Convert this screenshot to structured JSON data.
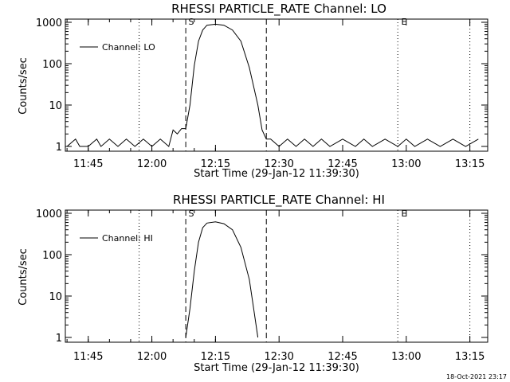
{
  "timestamp": "18-Oct-2021 23:17",
  "chart_data": [
    {
      "type": "line",
      "title": "RHESSI PARTICLE_RATE Channel: LO",
      "xlabel": "Start Time (29-Jan-12 11:39:30)",
      "ylabel": "Counts/sec",
      "yscale": "log",
      "ylim": [
        1,
        1000
      ],
      "xlim_minutes": [
        11.66,
        13.32
      ],
      "x_ticks": [
        "11:45",
        "12:00",
        "12:15",
        "12:30",
        "12:45",
        "13:00",
        "13:15"
      ],
      "y_ticks": [
        "1",
        "10",
        "100",
        "1000"
      ],
      "legend": {
        "label": "Channel: LO",
        "placement": "top-left"
      },
      "dashed_markers": [
        "12:08",
        "12:27"
      ],
      "dotted_markers": [
        "11:57",
        "12:58",
        "13:15"
      ],
      "marker_labels": [
        {
          "text": "S",
          "at": "12:09"
        },
        {
          "text": "E",
          "at": "12:59"
        }
      ],
      "series": [
        {
          "name": "Channel: LO",
          "points": [
            [
              "11:40",
              1
            ],
            [
              "11:42",
              1.5
            ],
            [
              "11:43",
              1
            ],
            [
              "11:45",
              1
            ],
            [
              "11:47",
              1.5
            ],
            [
              "11:48",
              1
            ],
            [
              "11:50",
              1.5
            ],
            [
              "11:52",
              1
            ],
            [
              "11:54",
              1.5
            ],
            [
              "11:56",
              1
            ],
            [
              "11:58",
              1.5
            ],
            [
              "12:00",
              1
            ],
            [
              "12:02",
              1.5
            ],
            [
              "12:04",
              1
            ],
            [
              "12:05",
              2.5
            ],
            [
              "12:06",
              2
            ],
            [
              "12:07",
              2.7
            ],
            [
              "12:08",
              2.7
            ],
            [
              "12:09",
              10
            ],
            [
              "12:10",
              90
            ],
            [
              "12:11",
              350
            ],
            [
              "12:12",
              650
            ],
            [
              "12:13",
              850
            ],
            [
              "12:15",
              900
            ],
            [
              "12:17",
              850
            ],
            [
              "12:19",
              650
            ],
            [
              "12:21",
              350
            ],
            [
              "12:23",
              80
            ],
            [
              "12:25",
              10
            ],
            [
              "12:26",
              2.5
            ],
            [
              "12:27",
              1.5
            ],
            [
              "12:28",
              1.5
            ],
            [
              "12:30",
              1
            ],
            [
              "12:32",
              1.5
            ],
            [
              "12:34",
              1
            ],
            [
              "12:36",
              1.5
            ],
            [
              "12:38",
              1
            ],
            [
              "12:40",
              1.5
            ],
            [
              "12:42",
              1
            ],
            [
              "12:45",
              1.5
            ],
            [
              "12:48",
              1
            ],
            [
              "12:50",
              1.5
            ],
            [
              "12:52",
              1
            ],
            [
              "12:55",
              1.5
            ],
            [
              "12:58",
              1
            ],
            [
              "13:00",
              1.5
            ],
            [
              "13:02",
              1
            ],
            [
              "13:05",
              1.5
            ],
            [
              "13:08",
              1
            ],
            [
              "13:11",
              1.5
            ],
            [
              "13:14",
              1
            ],
            [
              "13:17",
              1.5
            ]
          ]
        }
      ]
    },
    {
      "type": "line",
      "title": "RHESSI PARTICLE_RATE Channel: HI",
      "xlabel": "Start Time (29-Jan-12 11:39:30)",
      "ylabel": "Counts/sec",
      "yscale": "log",
      "ylim": [
        1,
        1000
      ],
      "xlim_minutes": [
        11.66,
        13.32
      ],
      "x_ticks": [
        "11:45",
        "12:00",
        "12:15",
        "12:30",
        "12:45",
        "13:00",
        "13:15"
      ],
      "y_ticks": [
        "1",
        "10",
        "100",
        "1000"
      ],
      "legend": {
        "label": "Channel: HI",
        "placement": "top-left"
      },
      "dashed_markers": [
        "12:08",
        "12:27"
      ],
      "dotted_markers": [
        "11:57",
        "12:58",
        "13:15"
      ],
      "marker_labels": [
        {
          "text": "S",
          "at": "12:09"
        },
        {
          "text": "E",
          "at": "12:59"
        }
      ],
      "series": [
        {
          "name": "Channel: HI",
          "points": [
            [
              "12:08",
              1
            ],
            [
              "12:09",
              5
            ],
            [
              "12:10",
              40
            ],
            [
              "12:11",
              200
            ],
            [
              "12:12",
              450
            ],
            [
              "12:13",
              580
            ],
            [
              "12:15",
              620
            ],
            [
              "12:17",
              560
            ],
            [
              "12:19",
              400
            ],
            [
              "12:21",
              150
            ],
            [
              "12:23",
              25
            ],
            [
              "12:24",
              5
            ],
            [
              "12:25",
              1
            ]
          ]
        }
      ]
    }
  ]
}
